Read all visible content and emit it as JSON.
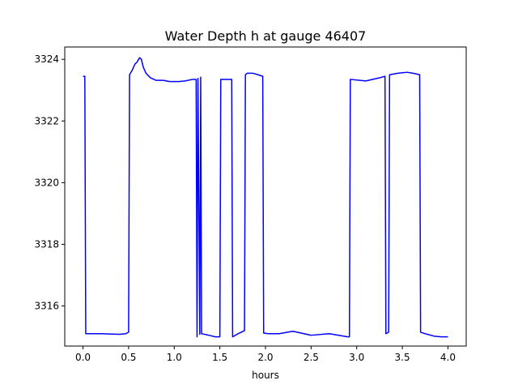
{
  "chart_data": {
    "type": "line",
    "title": "Water Depth h at gauge 46407",
    "xlabel": "hours",
    "ylabel": "",
    "xlim": [
      -0.2,
      4.2
    ],
    "ylim": [
      3314.7,
      3324.4
    ],
    "xticks": [
      0.0,
      0.5,
      1.0,
      1.5,
      2.0,
      2.5,
      3.0,
      3.5,
      4.0
    ],
    "xtick_labels": [
      "0.0",
      "0.5",
      "1.0",
      "1.5",
      "2.0",
      "2.5",
      "3.0",
      "3.5",
      "4.0"
    ],
    "yticks": [
      3316,
      3318,
      3320,
      3322,
      3324
    ],
    "ytick_labels": [
      "3316",
      "3318",
      "3320",
      "3322",
      "3324"
    ],
    "grid": false,
    "legend": "none",
    "series": [
      {
        "color": "#0000ff",
        "x": [
          0.0,
          0.02,
          0.03,
          0.2,
          0.4,
          0.47,
          0.5,
          0.51,
          0.54,
          0.57,
          0.59,
          0.62,
          0.64,
          0.66,
          0.69,
          0.74,
          0.8,
          0.88,
          0.95,
          1.05,
          1.12,
          1.2,
          1.24,
          1.25,
          1.26,
          1.28,
          1.29,
          1.3,
          1.38,
          1.45,
          1.5,
          1.51,
          1.57,
          1.62,
          1.63,
          1.64,
          1.7,
          1.77,
          1.78,
          1.8,
          1.86,
          1.92,
          1.97,
          1.98,
          2.03,
          2.15,
          2.3,
          2.5,
          2.7,
          2.9,
          2.92,
          2.93,
          3.1,
          3.25,
          3.31,
          3.32,
          3.35,
          3.36,
          3.45,
          3.55,
          3.62,
          3.69,
          3.7,
          3.75,
          3.85,
          3.93,
          4.0
        ],
        "y": [
          3323.45,
          3323.45,
          3315.1,
          3315.1,
          3315.08,
          3315.1,
          3315.15,
          3323.5,
          3323.65,
          3323.85,
          3323.9,
          3324.05,
          3324.0,
          3323.75,
          3323.55,
          3323.4,
          3323.32,
          3323.32,
          3323.28,
          3323.28,
          3323.3,
          3323.35,
          3323.35,
          3315.0,
          3323.38,
          3315.08,
          3323.42,
          3315.1,
          3315.05,
          3315.0,
          3315.0,
          3323.35,
          3323.35,
          3323.35,
          3323.35,
          3315.0,
          3315.1,
          3315.2,
          3323.5,
          3323.55,
          3323.55,
          3323.5,
          3323.45,
          3315.12,
          3315.1,
          3315.1,
          3315.18,
          3315.05,
          3315.1,
          3315.0,
          3315.0,
          3323.35,
          3323.3,
          3323.4,
          3323.45,
          3315.1,
          3315.15,
          3323.5,
          3323.55,
          3323.58,
          3323.55,
          3323.5,
          3315.15,
          3315.1,
          3315.02,
          3315.0,
          3315.0
        ]
      }
    ]
  }
}
